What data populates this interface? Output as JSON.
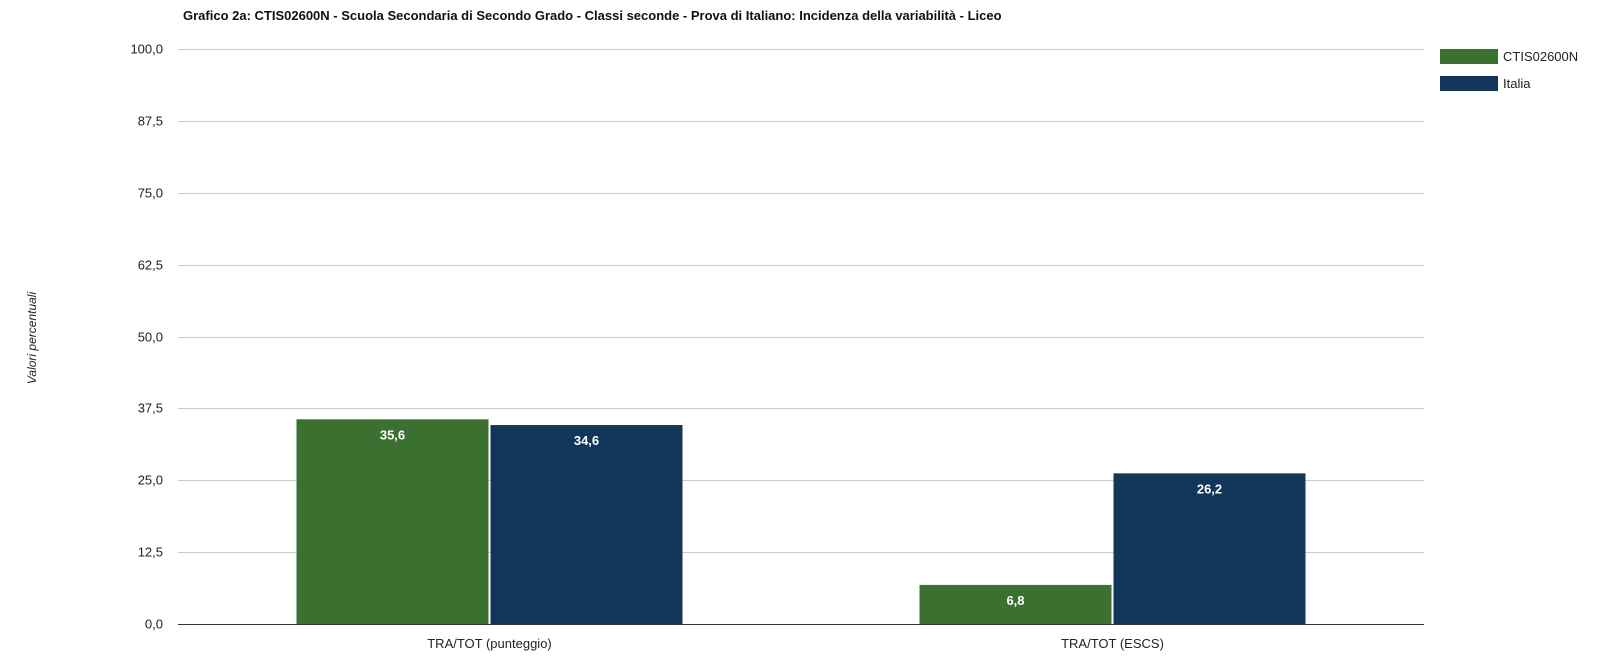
{
  "chart_data": {
    "type": "bar",
    "title": "Grafico 2a: CTIS02600N - Scuola Secondaria di Secondo Grado - Classi seconde - Prova di Italiano: Incidenza della variabilità - Liceo",
    "xlabel": "",
    "ylabel": "Valori percentuali",
    "categories": [
      "TRA/TOT (punteggio)",
      "TRA/TOT (ESCS)"
    ],
    "series": [
      {
        "name": "CTIS02600N",
        "color": "#3a7030",
        "values": [
          35.6,
          6.8
        ],
        "labels": [
          "35,6",
          "6,8"
        ]
      },
      {
        "name": "Italia",
        "color": "#12365a",
        "values": [
          34.6,
          26.2
        ],
        "labels": [
          "34,6",
          "26,2"
        ]
      }
    ],
    "ylim": [
      0,
      100
    ],
    "yticks": [
      0,
      12.5,
      25,
      37.5,
      50,
      62.5,
      75,
      87.5,
      100
    ],
    "ytick_labels": [
      "0,0",
      "12,5",
      "25,0",
      "37,5",
      "50,0",
      "62,5",
      "75,0",
      "87,5",
      "100,0"
    ],
    "grid": true,
    "legend_position": "top-right"
  }
}
